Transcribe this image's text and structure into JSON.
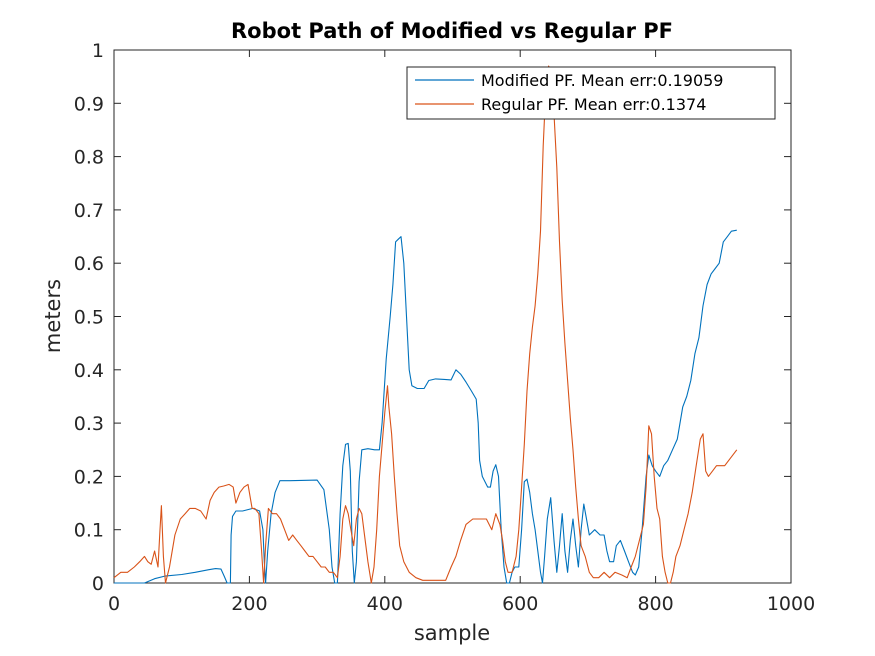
{
  "chart_data": {
    "type": "line",
    "title": "Robot Path of Modified vs Regular PF",
    "xlabel": "sample",
    "ylabel": "meters",
    "xlim": [
      0,
      1000
    ],
    "ylim": [
      0,
      1
    ],
    "xticks": [
      0,
      200,
      400,
      600,
      800,
      1000
    ],
    "yticks": [
      0,
      0.1,
      0.2,
      0.3,
      0.4,
      0.5,
      0.6,
      0.7,
      0.8,
      0.9,
      1
    ],
    "grid": false,
    "legend_position": "top-right",
    "series": [
      {
        "name": "Modified PF. Mean err:0.19059",
        "color": "#0072BD",
        "points": [
          [
            0,
            0
          ],
          [
            45,
            0
          ],
          [
            60,
            0.008
          ],
          [
            75,
            0.013
          ],
          [
            100,
            0.016
          ],
          [
            120,
            0.02
          ],
          [
            140,
            0.025
          ],
          [
            150,
            0.027
          ],
          [
            158,
            0.026
          ],
          [
            163,
            0.012
          ],
          [
            167,
            0.0
          ],
          [
            172,
            0
          ],
          [
            173,
            0.09
          ],
          [
            175,
            0.125
          ],
          [
            180,
            0.135
          ],
          [
            190,
            0.135
          ],
          [
            205,
            0.14
          ],
          [
            215,
            0.135
          ],
          [
            220,
            0.1
          ],
          [
            222,
            0.04
          ],
          [
            224,
            0.0
          ],
          [
            227,
            0.06
          ],
          [
            232,
            0.13
          ],
          [
            238,
            0.17
          ],
          [
            245,
            0.192
          ],
          [
            260,
            0.192
          ],
          [
            300,
            0.193
          ],
          [
            310,
            0.175
          ],
          [
            318,
            0.1
          ],
          [
            322,
            0.03
          ],
          [
            326,
            0.0
          ],
          [
            330,
            0.0
          ],
          [
            334,
            0.13
          ],
          [
            338,
            0.22
          ],
          [
            342,
            0.26
          ],
          [
            346,
            0.262
          ],
          [
            349,
            0.21
          ],
          [
            352,
            0.06
          ],
          [
            355,
            0.0
          ],
          [
            358,
            0.04
          ],
          [
            362,
            0.19
          ],
          [
            366,
            0.25
          ],
          [
            375,
            0.252
          ],
          [
            385,
            0.25
          ],
          [
            392,
            0.25
          ],
          [
            396,
            0.3
          ],
          [
            402,
            0.42
          ],
          [
            408,
            0.5
          ],
          [
            412,
            0.56
          ],
          [
            416,
            0.64
          ],
          [
            420,
            0.645
          ],
          [
            424,
            0.65
          ],
          [
            428,
            0.6
          ],
          [
            432,
            0.5
          ],
          [
            436,
            0.4
          ],
          [
            440,
            0.37
          ],
          [
            448,
            0.365
          ],
          [
            458,
            0.365
          ],
          [
            465,
            0.38
          ],
          [
            475,
            0.383
          ],
          [
            488,
            0.382
          ],
          [
            498,
            0.381
          ],
          [
            505,
            0.4
          ],
          [
            512,
            0.392
          ],
          [
            520,
            0.377
          ],
          [
            528,
            0.36
          ],
          [
            535,
            0.345
          ],
          [
            538,
            0.3
          ],
          [
            540,
            0.23
          ],
          [
            544,
            0.2
          ],
          [
            548,
            0.19
          ],
          [
            552,
            0.18
          ],
          [
            556,
            0.18
          ],
          [
            560,
            0.21
          ],
          [
            564,
            0.222
          ],
          [
            568,
            0.2
          ],
          [
            572,
            0.1
          ],
          [
            576,
            0.03
          ],
          [
            580,
            0.0
          ],
          [
            584,
            0.0
          ],
          [
            588,
            0.02
          ],
          [
            592,
            0.03
          ],
          [
            598,
            0.03
          ],
          [
            602,
            0.1
          ],
          [
            606,
            0.19
          ],
          [
            610,
            0.195
          ],
          [
            614,
            0.17
          ],
          [
            618,
            0.13
          ],
          [
            622,
            0.1
          ],
          [
            626,
            0.06
          ],
          [
            630,
            0.02
          ],
          [
            633,
            0.0
          ],
          [
            636,
            0.05
          ],
          [
            640,
            0.12
          ],
          [
            645,
            0.16
          ],
          [
            650,
            0.08
          ],
          [
            654,
            0.02
          ],
          [
            658,
            0.07
          ],
          [
            662,
            0.13
          ],
          [
            666,
            0.06
          ],
          [
            670,
            0.02
          ],
          [
            674,
            0.08
          ],
          [
            678,
            0.12
          ],
          [
            682,
            0.07
          ],
          [
            686,
            0.03
          ],
          [
            690,
            0.1
          ],
          [
            694,
            0.148
          ],
          [
            698,
            0.12
          ],
          [
            702,
            0.09
          ],
          [
            710,
            0.1
          ],
          [
            718,
            0.09
          ],
          [
            724,
            0.09
          ],
          [
            728,
            0.06
          ],
          [
            732,
            0.04
          ],
          [
            738,
            0.04
          ],
          [
            742,
            0.07
          ],
          [
            748,
            0.08
          ],
          [
            754,
            0.06
          ],
          [
            760,
            0.04
          ],
          [
            766,
            0.02
          ],
          [
            770,
            0.015
          ],
          [
            775,
            0.03
          ],
          [
            780,
            0.1
          ],
          [
            786,
            0.2
          ],
          [
            790,
            0.24
          ],
          [
            795,
            0.22
          ],
          [
            800,
            0.21
          ],
          [
            806,
            0.2
          ],
          [
            812,
            0.22
          ],
          [
            818,
            0.23
          ],
          [
            825,
            0.25
          ],
          [
            832,
            0.27
          ],
          [
            840,
            0.33
          ],
          [
            846,
            0.35
          ],
          [
            852,
            0.38
          ],
          [
            858,
            0.43
          ],
          [
            864,
            0.46
          ],
          [
            870,
            0.52
          ],
          [
            876,
            0.56
          ],
          [
            882,
            0.58
          ],
          [
            888,
            0.59
          ],
          [
            894,
            0.6
          ],
          [
            900,
            0.64
          ],
          [
            906,
            0.65
          ],
          [
            912,
            0.66
          ],
          [
            920,
            0.662
          ]
        ]
      },
      {
        "name": "Regular  PF. Mean err:0.1374",
        "color": "#D95319",
        "points": [
          [
            0,
            0.01
          ],
          [
            10,
            0.02
          ],
          [
            20,
            0.02
          ],
          [
            30,
            0.03
          ],
          [
            38,
            0.04
          ],
          [
            45,
            0.05
          ],
          [
            50,
            0.04
          ],
          [
            55,
            0.035
          ],
          [
            60,
            0.06
          ],
          [
            65,
            0.03
          ],
          [
            68,
            0.1
          ],
          [
            70,
            0.145
          ],
          [
            73,
            0.05
          ],
          [
            76,
            0.0
          ],
          [
            82,
            0.03
          ],
          [
            90,
            0.09
          ],
          [
            98,
            0.12
          ],
          [
            105,
            0.13
          ],
          [
            112,
            0.14
          ],
          [
            120,
            0.14
          ],
          [
            128,
            0.135
          ],
          [
            136,
            0.12
          ],
          [
            142,
            0.155
          ],
          [
            148,
            0.17
          ],
          [
            155,
            0.18
          ],
          [
            162,
            0.182
          ],
          [
            170,
            0.185
          ],
          [
            176,
            0.18
          ],
          [
            180,
            0.15
          ],
          [
            186,
            0.17
          ],
          [
            192,
            0.18
          ],
          [
            198,
            0.185
          ],
          [
            204,
            0.14
          ],
          [
            208,
            0.14
          ],
          [
            214,
            0.13
          ],
          [
            218,
            0.06
          ],
          [
            221,
            0.0
          ],
          [
            224,
            0.07
          ],
          [
            228,
            0.14
          ],
          [
            234,
            0.13
          ],
          [
            240,
            0.13
          ],
          [
            246,
            0.12
          ],
          [
            252,
            0.1
          ],
          [
            258,
            0.08
          ],
          [
            264,
            0.09
          ],
          [
            270,
            0.08
          ],
          [
            276,
            0.07
          ],
          [
            282,
            0.06
          ],
          [
            288,
            0.05
          ],
          [
            294,
            0.05
          ],
          [
            300,
            0.04
          ],
          [
            306,
            0.03
          ],
          [
            312,
            0.03
          ],
          [
            318,
            0.02
          ],
          [
            324,
            0.02
          ],
          [
            330,
            0.01
          ],
          [
            334,
            0.05
          ],
          [
            338,
            0.12
          ],
          [
            342,
            0.145
          ],
          [
            346,
            0.13
          ],
          [
            350,
            0.1
          ],
          [
            354,
            0.07
          ],
          [
            358,
            0.12
          ],
          [
            362,
            0.14
          ],
          [
            366,
            0.13
          ],
          [
            370,
            0.09
          ],
          [
            375,
            0.04
          ],
          [
            380,
            0.0
          ],
          [
            384,
            0.03
          ],
          [
            388,
            0.1
          ],
          [
            392,
            0.2
          ],
          [
            396,
            0.26
          ],
          [
            400,
            0.32
          ],
          [
            404,
            0.37
          ],
          [
            406,
            0.33
          ],
          [
            410,
            0.28
          ],
          [
            414,
            0.2
          ],
          [
            418,
            0.13
          ],
          [
            422,
            0.07
          ],
          [
            428,
            0.04
          ],
          [
            436,
            0.02
          ],
          [
            446,
            0.01
          ],
          [
            456,
            0.005
          ],
          [
            468,
            0.005
          ],
          [
            480,
            0.005
          ],
          [
            490,
            0.005
          ],
          [
            498,
            0.03
          ],
          [
            505,
            0.05
          ],
          [
            512,
            0.08
          ],
          [
            520,
            0.11
          ],
          [
            530,
            0.12
          ],
          [
            540,
            0.12
          ],
          [
            550,
            0.12
          ],
          [
            558,
            0.1
          ],
          [
            564,
            0.13
          ],
          [
            570,
            0.11
          ],
          [
            574,
            0.08
          ],
          [
            578,
            0.04
          ],
          [
            582,
            0.02
          ],
          [
            588,
            0.02
          ],
          [
            594,
            0.05
          ],
          [
            598,
            0.1
          ],
          [
            602,
            0.18
          ],
          [
            606,
            0.26
          ],
          [
            610,
            0.36
          ],
          [
            614,
            0.43
          ],
          [
            618,
            0.48
          ],
          [
            622,
            0.52
          ],
          [
            626,
            0.58
          ],
          [
            630,
            0.66
          ],
          [
            634,
            0.82
          ],
          [
            638,
            0.93
          ],
          [
            642,
            0.97
          ],
          [
            646,
            0.96
          ],
          [
            650,
            0.88
          ],
          [
            654,
            0.78
          ],
          [
            658,
            0.64
          ],
          [
            662,
            0.53
          ],
          [
            666,
            0.45
          ],
          [
            670,
            0.38
          ],
          [
            674,
            0.31
          ],
          [
            678,
            0.25
          ],
          [
            682,
            0.18
          ],
          [
            686,
            0.12
          ],
          [
            690,
            0.07
          ],
          [
            696,
            0.05
          ],
          [
            702,
            0.02
          ],
          [
            708,
            0.01
          ],
          [
            716,
            0.01
          ],
          [
            724,
            0.02
          ],
          [
            732,
            0.01
          ],
          [
            740,
            0.02
          ],
          [
            750,
            0.015
          ],
          [
            758,
            0.01
          ],
          [
            764,
            0.03
          ],
          [
            770,
            0.05
          ],
          [
            776,
            0.08
          ],
          [
            782,
            0.11
          ],
          [
            786,
            0.18
          ],
          [
            790,
            0.295
          ],
          [
            794,
            0.28
          ],
          [
            798,
            0.2
          ],
          [
            802,
            0.14
          ],
          [
            806,
            0.12
          ],
          [
            810,
            0.05
          ],
          [
            814,
            0.02
          ],
          [
            818,
            0.0
          ],
          [
            822,
            0.0
          ],
          [
            826,
            0.02
          ],
          [
            830,
            0.05
          ],
          [
            836,
            0.07
          ],
          [
            842,
            0.1
          ],
          [
            848,
            0.13
          ],
          [
            854,
            0.17
          ],
          [
            860,
            0.22
          ],
          [
            866,
            0.27
          ],
          [
            870,
            0.28
          ],
          [
            874,
            0.21
          ],
          [
            878,
            0.2
          ],
          [
            884,
            0.21
          ],
          [
            890,
            0.22
          ],
          [
            896,
            0.22
          ],
          [
            902,
            0.22
          ],
          [
            908,
            0.23
          ],
          [
            914,
            0.24
          ],
          [
            920,
            0.25
          ]
        ]
      }
    ]
  }
}
